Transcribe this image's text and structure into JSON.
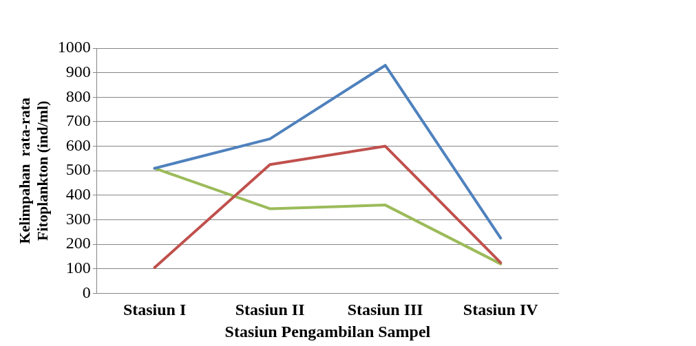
{
  "chart_data": {
    "type": "line",
    "xlabel": "Stasiun Pengambilan Sampel",
    "ylabel": "Kelimpahan  rata-rata\nFitoplankton (ind/ml)",
    "categories": [
      "Stasiun I",
      "Stasiun II",
      "Stasiun III",
      "Stasiun IV"
    ],
    "series": [
      {
        "color": "#4f81bd",
        "values": [
          510,
          630,
          930,
          225
        ]
      },
      {
        "color": "#c0504d",
        "values": [
          105,
          525,
          600,
          125
        ]
      },
      {
        "color": "#9bbb59",
        "values": [
          510,
          345,
          360,
          120
        ]
      }
    ],
    "ylim": [
      0,
      1000
    ],
    "yticks": [
      0,
      100,
      200,
      300,
      400,
      500,
      600,
      700,
      800,
      900,
      1000
    ],
    "grid": "y",
    "legend": false,
    "marker": "none",
    "line_style": "solid"
  }
}
